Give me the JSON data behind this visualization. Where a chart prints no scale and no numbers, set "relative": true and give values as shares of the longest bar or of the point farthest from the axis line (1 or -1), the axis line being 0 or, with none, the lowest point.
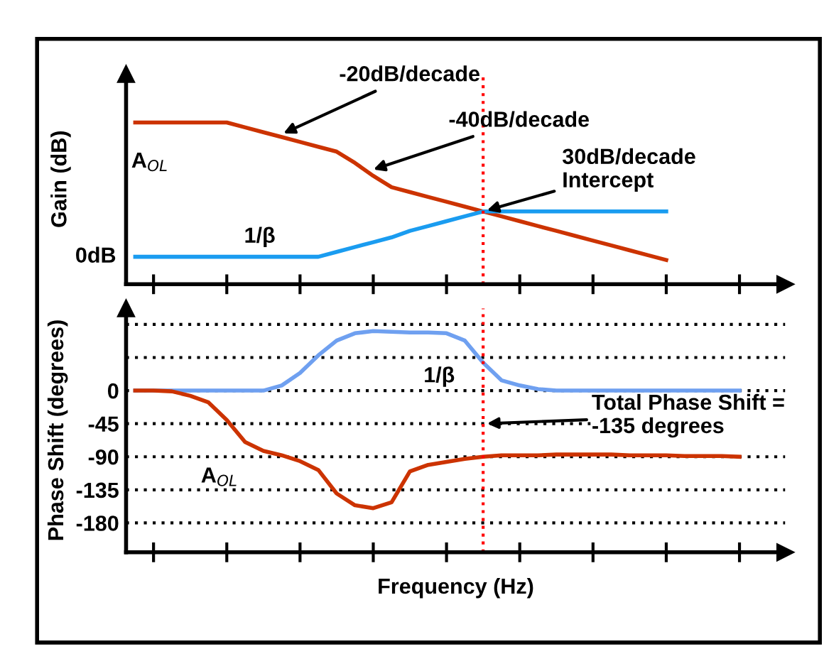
{
  "chart_data": [
    {
      "type": "line",
      "ylabel": "Gain (dB)",
      "relative": true,
      "tick_labels": false,
      "grid": false,
      "marker": "none",
      "line_style": "solid",
      "categories": [
        null,
        null,
        null,
        null,
        null,
        null,
        null,
        null,
        null,
        null,
        null,
        null,
        null,
        null,
        null,
        null,
        null,
        null,
        null,
        null,
        null,
        null,
        null,
        null,
        null,
        null,
        null,
        null,
        null,
        null,
        null,
        null,
        null,
        null,
        null
      ],
      "series": [
        {
          "color": "#cc3300",
          "values": [
            1.0,
            1.0,
            1.0,
            1.0,
            1.0,
            1.0,
            0.97,
            0.94,
            0.91,
            0.88,
            0.85,
            0.82,
            0.75,
            0.67,
            0.6,
            0.57,
            0.54,
            0.51,
            0.48,
            0.45,
            0.42,
            0.39,
            0.36,
            0.33,
            0.3,
            0.27,
            0.24,
            0.21,
            0.18,
            0.15,
            null,
            null,
            null,
            null,
            null
          ]
        },
        {
          "color": "#1a9cf0",
          "values": [
            0.17,
            0.17,
            0.17,
            0.17,
            0.17,
            0.17,
            0.17,
            0.17,
            0.17,
            0.17,
            0.17,
            0.2,
            0.23,
            0.26,
            0.29,
            0.33,
            0.36,
            0.39,
            0.42,
            0.45,
            0.45,
            0.45,
            0.45,
            0.45,
            0.45,
            0.45,
            0.45,
            0.45,
            0.45,
            0.45,
            null,
            null,
            null,
            null,
            null
          ]
        }
      ],
      "annotations": [
        "-20dB/decade",
        "-40dB/decade",
        {
          "text": "30dB/decade\nIntercept",
          "y": 0.45
        },
        {
          "text": "A$_{OL}$",
          "y": 1.0
        },
        {
          "text": "1/β",
          "y": 0.17
        },
        "0dB"
      ]
    },
    {
      "type": "line",
      "ylabel": "Phase Shift (degrees)",
      "xlabel": "Frequency (Hz)",
      "tick_labels": "y",
      "grid": "y",
      "marker": "none",
      "line_style": "solid",
      "categories": [
        null,
        null,
        null,
        null,
        null,
        null,
        null,
        null,
        null,
        null,
        null,
        null,
        null,
        null,
        null,
        null,
        null,
        null,
        null,
        null,
        null,
        null,
        null,
        null,
        null,
        null,
        null,
        null,
        null,
        null,
        null,
        null,
        null,
        null,
        null
      ],
      "ylim": [
        -220,
        112
      ],
      "yticks": [
        {
          "value": 90,
          "label": null
        },
        {
          "value": 45,
          "label": null
        },
        0,
        -45,
        -90,
        -135,
        -180
      ],
      "series": [
        {
          "color": "#6fa0f0",
          "values": [
            0,
            0,
            0,
            0,
            0,
            0,
            0,
            0,
            7,
            24,
            48,
            68,
            78,
            81,
            80,
            79,
            79,
            78,
            68,
            38,
            14,
            7,
            2,
            0,
            0,
            0,
            0,
            0,
            0,
            0,
            0,
            0,
            0,
            0,
            null
          ]
        },
        {
          "color": "#cc3300",
          "values": [
            0,
            0,
            -1,
            -7,
            -16,
            -40,
            -70,
            -82,
            -88,
            -96,
            -108,
            -140,
            -156,
            -160,
            -152,
            -110,
            -101,
            -97,
            -93,
            -90,
            -88,
            -88,
            -88,
            -87,
            -87,
            -87,
            -87,
            -88,
            -88,
            -88,
            -89,
            -89,
            -89,
            -90,
            null
          ]
        }
      ],
      "annotations": [
        "Total Phase Shift =\n-135 degrees",
        {
          "text": "1/β",
          "y": 78
        },
        "A$_{OL}$"
      ]
    }
  ]
}
